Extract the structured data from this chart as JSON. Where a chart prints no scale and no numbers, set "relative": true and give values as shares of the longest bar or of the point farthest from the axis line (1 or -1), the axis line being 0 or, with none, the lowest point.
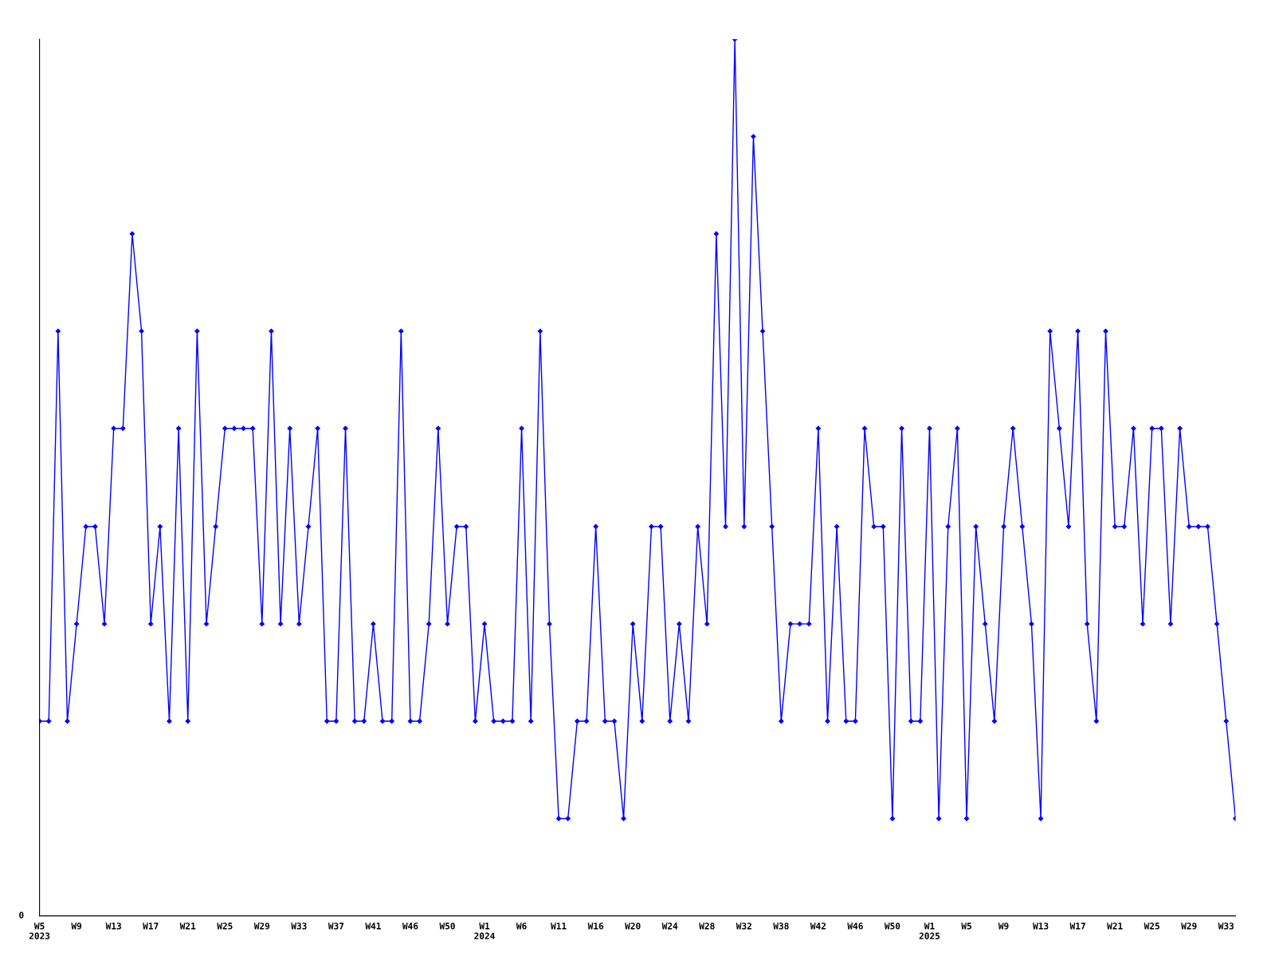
{
  "chart_data": {
    "type": "line",
    "relative": true,
    "color": "#0000ff",
    "marker": "diamond",
    "line_style": "solid",
    "grid": false,
    "legend": false,
    "annotations": [
      "0"
    ],
    "categories": [
      "W5\n2023",
      null,
      null,
      null,
      "W9",
      null,
      null,
      null,
      "W13",
      null,
      null,
      null,
      "W17",
      null,
      null,
      null,
      "W21",
      null,
      null,
      null,
      "W25",
      null,
      null,
      null,
      "W29",
      null,
      null,
      null,
      "W33",
      null,
      null,
      null,
      "W37",
      null,
      null,
      null,
      "W41",
      null,
      null,
      null,
      "W46",
      null,
      null,
      null,
      "W50",
      null,
      null,
      null,
      "W1\n2024",
      null,
      null,
      null,
      "W6",
      null,
      null,
      null,
      "W11",
      null,
      null,
      null,
      "W16",
      null,
      null,
      null,
      "W20",
      null,
      null,
      null,
      "W24",
      null,
      null,
      null,
      "W28",
      null,
      null,
      null,
      "W32",
      null,
      null,
      null,
      "W38",
      null,
      null,
      null,
      "W42",
      null,
      null,
      null,
      "W46",
      null,
      null,
      null,
      "W50",
      null,
      null,
      null,
      "W1\n2025",
      null,
      null,
      null,
      "W5",
      null,
      null,
      null,
      "W9",
      null,
      null,
      null,
      "W13",
      null,
      null,
      null,
      "W17",
      null,
      null,
      null,
      "W21",
      null,
      null,
      null,
      "W25",
      null,
      null,
      null,
      "W29",
      null,
      null,
      null,
      "W33",
      null
    ],
    "values": [
      0.222,
      0.222,
      0.667,
      0.222,
      0.333,
      0.444,
      0.444,
      0.333,
      0.556,
      0.556,
      0.778,
      0.667,
      0.333,
      0.444,
      0.222,
      0.556,
      0.222,
      0.667,
      0.333,
      0.444,
      0.556,
      0.556,
      0.556,
      0.556,
      0.333,
      0.667,
      0.333,
      0.556,
      0.333,
      0.444,
      0.556,
      0.222,
      0.222,
      0.556,
      0.222,
      0.222,
      0.333,
      0.222,
      0.222,
      0.667,
      0.222,
      0.222,
      0.333,
      0.556,
      0.333,
      0.444,
      0.444,
      0.222,
      0.333,
      0.222,
      0.222,
      0.222,
      0.556,
      0.222,
      0.667,
      0.333,
      0.111,
      0.111,
      0.222,
      0.222,
      0.444,
      0.222,
      0.222,
      0.111,
      0.333,
      0.222,
      0.444,
      0.444,
      0.222,
      0.333,
      0.222,
      0.444,
      0.333,
      0.778,
      0.444,
      1,
      0.444,
      0.889,
      0.667,
      0.444,
      0.222,
      0.333,
      0.333,
      0.333,
      0.556,
      0.222,
      0.444,
      0.222,
      0.222,
      0.556,
      0.444,
      0.444,
      0.111,
      0.556,
      0.222,
      0.222,
      0.556,
      0.111,
      0.444,
      0.556,
      0.111,
      0.444,
      0.333,
      0.222,
      0.444,
      0.556,
      0.444,
      0.333,
      0.111,
      0.667,
      0.556,
      0.444,
      0.667,
      0.333,
      0.222,
      0.667,
      0.444,
      0.444,
      0.556,
      0.333,
      0.556,
      0.556,
      0.333,
      0.556,
      0.444,
      0.444,
      0.444,
      0.333,
      0.222,
      0.111
    ]
  }
}
